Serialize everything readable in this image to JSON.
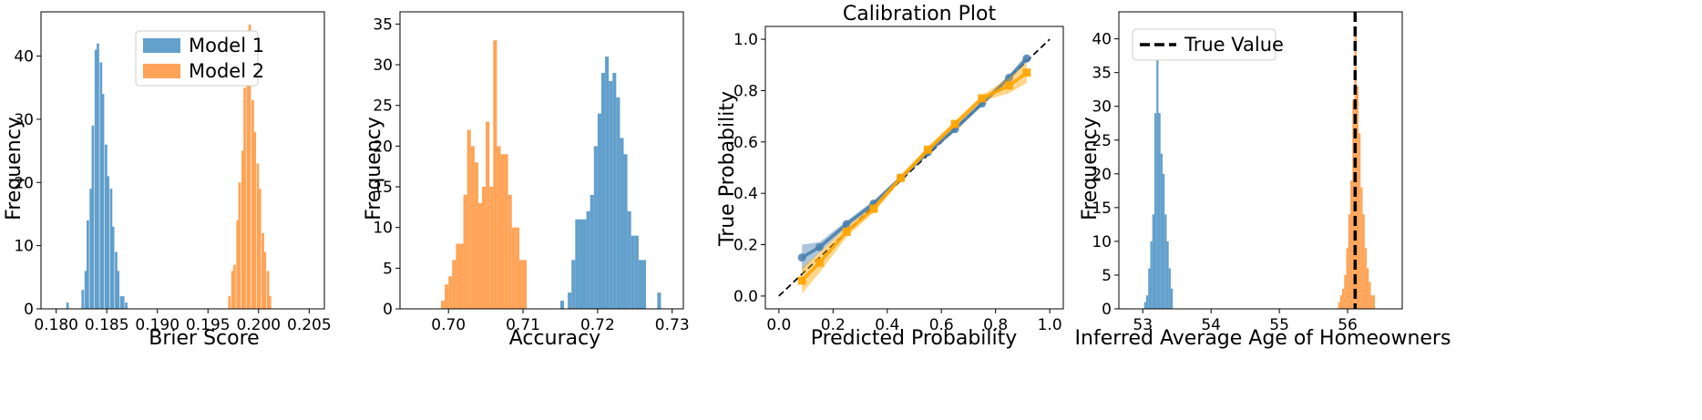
{
  "colors": {
    "model1": "#5b9bc9",
    "model2": "#fe9f4f",
    "calib1": "#4a7fb0",
    "calib2": "#ffa500",
    "true_line": "#000000"
  },
  "chart_data": [
    {
      "type": "bar",
      "xlabel": "Brier Score",
      "ylabel": "Frequency",
      "title": "",
      "xlim": [
        0.1785,
        0.2065
      ],
      "ylim": [
        0,
        47
      ],
      "xticks": [
        "0.180",
        "0.185",
        "0.190",
        "0.195",
        "0.200",
        "0.205"
      ],
      "xtick_values": [
        0.18,
        0.185,
        0.19,
        0.195,
        0.2,
        0.205
      ],
      "yticks": [
        0,
        10,
        20,
        30,
        40
      ],
      "legend": {
        "placement": "top-center",
        "entries": [
          "Model 1",
          "Model 2"
        ]
      },
      "series": [
        {
          "name": "Model 1",
          "bin_width": 0.00025,
          "bin_starts": [
            0.181,
            0.1825,
            0.1828,
            0.183,
            0.1833,
            0.1835,
            0.1838,
            0.184,
            0.1843,
            0.1845,
            0.1848,
            0.185,
            0.1853,
            0.1855,
            0.1858,
            0.186,
            0.1863,
            0.1865,
            0.1868
          ],
          "values": [
            1,
            3,
            6,
            14,
            19,
            29,
            41,
            42,
            39,
            34,
            26,
            21,
            19,
            13,
            9,
            6,
            2,
            2,
            1
          ]
        },
        {
          "name": "Model 2",
          "bin_width": 0.00025,
          "bin_starts": [
            0.197,
            0.1973,
            0.1975,
            0.1978,
            0.198,
            0.1983,
            0.1985,
            0.1988,
            0.199,
            0.1993,
            0.1995,
            0.1998,
            0.2,
            0.2003,
            0.2005,
            0.2008,
            0.201
          ],
          "values": [
            2,
            6,
            7,
            14,
            20,
            25,
            35,
            44,
            45,
            33,
            28,
            23,
            19,
            12,
            9,
            6,
            2
          ]
        }
      ]
    },
    {
      "type": "bar",
      "xlabel": "Accuracy",
      "ylabel": "Frequency",
      "title": "",
      "xlim": [
        0.6935,
        0.7315
      ],
      "ylim": [
        0,
        36.5
      ],
      "xticks": [
        "0.70",
        "0.71",
        "0.72",
        "0.73"
      ],
      "xtick_values": [
        0.7,
        0.71,
        0.72,
        0.73
      ],
      "yticks": [
        0,
        5,
        10,
        15,
        20,
        25,
        30,
        35
      ],
      "series": [
        {
          "name": "Model 1",
          "bin_width": 0.0005,
          "bin_starts": [
            0.715,
            0.716,
            0.7165,
            0.717,
            0.7175,
            0.718,
            0.7185,
            0.719,
            0.7195,
            0.72,
            0.7205,
            0.721,
            0.7215,
            0.722,
            0.7225,
            0.723,
            0.7235,
            0.724,
            0.7245,
            0.725,
            0.7255,
            0.726,
            0.728
          ],
          "values": [
            1,
            2,
            6,
            11,
            11,
            11,
            12,
            14,
            20,
            24,
            29,
            31,
            28,
            29,
            26,
            21,
            19,
            12,
            9,
            9,
            6,
            6,
            2
          ]
        },
        {
          "name": "Model 2",
          "bin_width": 0.0005,
          "bin_starts": [
            0.699,
            0.6995,
            0.7,
            0.7005,
            0.701,
            0.7015,
            0.702,
            0.7025,
            0.703,
            0.7035,
            0.704,
            0.7045,
            0.705,
            0.7055,
            0.706,
            0.7065,
            0.707,
            0.7075,
            0.708,
            0.7085,
            0.709,
            0.7095,
            0.71
          ],
          "values": [
            1,
            3,
            4,
            6,
            8,
            8,
            14,
            22,
            20,
            18,
            13,
            15,
            23,
            15,
            33,
            20,
            19,
            19,
            14,
            10,
            10,
            6,
            6
          ]
        }
      ]
    },
    {
      "type": "line",
      "title": "Calibration Plot",
      "xlabel": "Predicted Probability",
      "ylabel": "True Probability",
      "xlim": [
        -0.05,
        1.05
      ],
      "ylim": [
        -0.05,
        1.05
      ],
      "xticks": [
        "0.0",
        "0.2",
        "0.4",
        "0.6",
        "0.8",
        "1.0"
      ],
      "xtick_values": [
        0.0,
        0.2,
        0.4,
        0.6,
        0.8,
        1.0
      ],
      "yticks": [
        "0.0",
        "0.2",
        "0.4",
        "0.6",
        "0.8",
        "1.0"
      ],
      "ytick_values": [
        0.0,
        0.2,
        0.4,
        0.6,
        0.8,
        1.0
      ],
      "reference_line": {
        "x": [
          0,
          1
        ],
        "y": [
          0,
          1
        ],
        "style": "dashed"
      },
      "series": [
        {
          "name": "Model 1",
          "x": [
            0.085,
            0.15,
            0.25,
            0.35,
            0.45,
            0.55,
            0.65,
            0.75,
            0.85,
            0.915
          ],
          "y": [
            0.15,
            0.19,
            0.28,
            0.36,
            0.46,
            0.56,
            0.65,
            0.75,
            0.85,
            0.925
          ],
          "spread": [
            0.05,
            0.02,
            0.012,
            0.012,
            0.01,
            0.01,
            0.01,
            0.01,
            0.012,
            0.015
          ]
        },
        {
          "name": "Model 2",
          "x": [
            0.085,
            0.15,
            0.25,
            0.35,
            0.45,
            0.55,
            0.65,
            0.75,
            0.85,
            0.915
          ],
          "y": [
            0.06,
            0.13,
            0.25,
            0.34,
            0.46,
            0.57,
            0.67,
            0.77,
            0.82,
            0.87
          ],
          "spread": [
            0.05,
            0.04,
            0.02,
            0.015,
            0.012,
            0.012,
            0.012,
            0.012,
            0.03,
            0.04
          ]
        }
      ]
    },
    {
      "type": "bar",
      "xlabel": "Inferred Average Age of Homeowners",
      "ylabel": "Frequency",
      "title": "",
      "xlim": [
        52.65,
        56.8
      ],
      "ylim": [
        0,
        44
      ],
      "xticks": [
        "53",
        "54",
        "55",
        "56"
      ],
      "xtick_values": [
        53,
        54,
        55,
        56
      ],
      "yticks": [
        0,
        5,
        10,
        15,
        20,
        25,
        30,
        35,
        40
      ],
      "legend": {
        "placement": "top-left",
        "entries": [
          "True Value"
        ]
      },
      "true_value": 56.11,
      "series": [
        {
          "name": "Model 1",
          "bin_width": 0.03,
          "bin_starts": [
            53.02,
            53.05,
            53.08,
            53.11,
            53.14,
            53.17,
            53.2,
            53.23,
            53.26,
            53.29,
            53.32,
            53.35,
            53.38,
            53.41
          ],
          "values": [
            1,
            2,
            6,
            10,
            14,
            29,
            37,
            29,
            23,
            20,
            14,
            10,
            6,
            3
          ]
        },
        {
          "name": "Model 2",
          "bin_width": 0.03,
          "bin_starts": [
            55.86,
            55.89,
            55.92,
            55.95,
            55.98,
            56.01,
            56.04,
            56.07,
            56.1,
            56.13,
            56.16,
            56.19,
            56.22,
            56.25,
            56.28,
            56.31,
            56.34,
            56.37
          ],
          "values": [
            1,
            2,
            3,
            5,
            9,
            14,
            19,
            31,
            41,
            33,
            26,
            18,
            14,
            9,
            6,
            4,
            2,
            2
          ]
        }
      ]
    }
  ]
}
